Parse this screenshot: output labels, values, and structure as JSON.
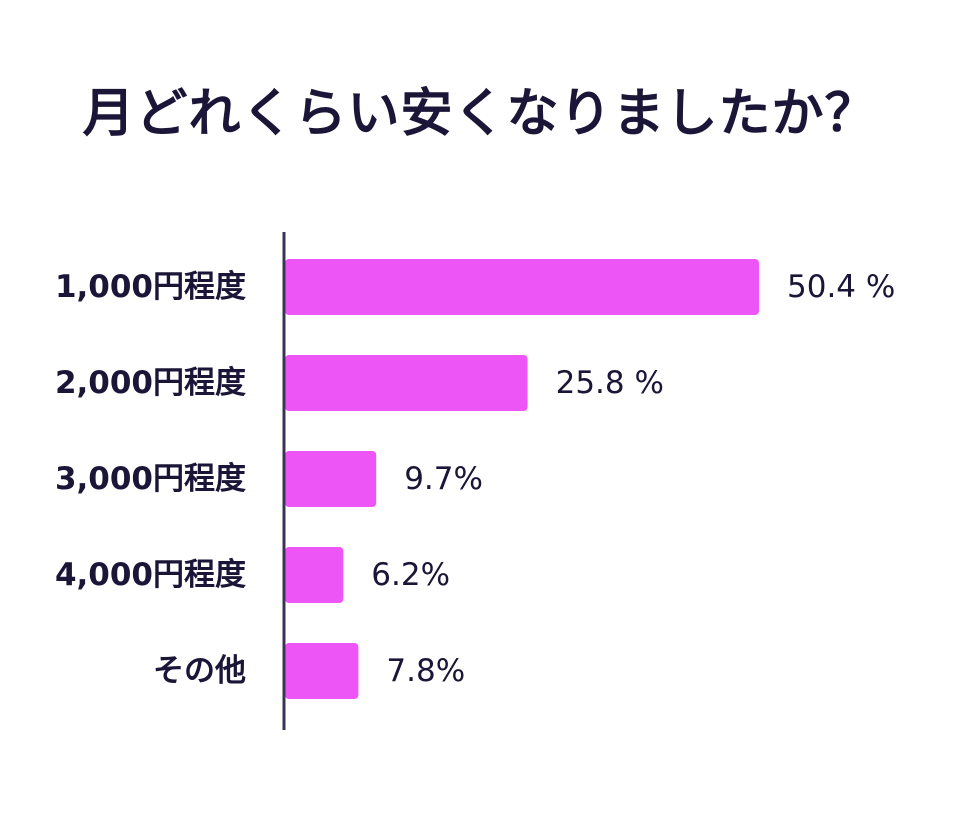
{
  "chart_data": {
    "type": "bar",
    "orientation": "horizontal",
    "title": "月どれくらい安くなりましたか？",
    "categories": [
      "1,000円程度",
      "2,000円程度",
      "3,000円程度",
      "4,000円程度",
      "その他"
    ],
    "values": [
      50.4,
      25.8,
      9.7,
      6.2,
      7.8
    ],
    "value_labels": [
      "50.4 %",
      "25.8 %",
      "9.7%",
      "6.2%",
      "7.8%"
    ],
    "unit": "%",
    "xlim": [
      0,
      50.4
    ],
    "grid": false,
    "legend": "none",
    "colors": {
      "bar": "#ee55f7",
      "axis": "#3a3550",
      "text": "#1b1537"
    }
  }
}
